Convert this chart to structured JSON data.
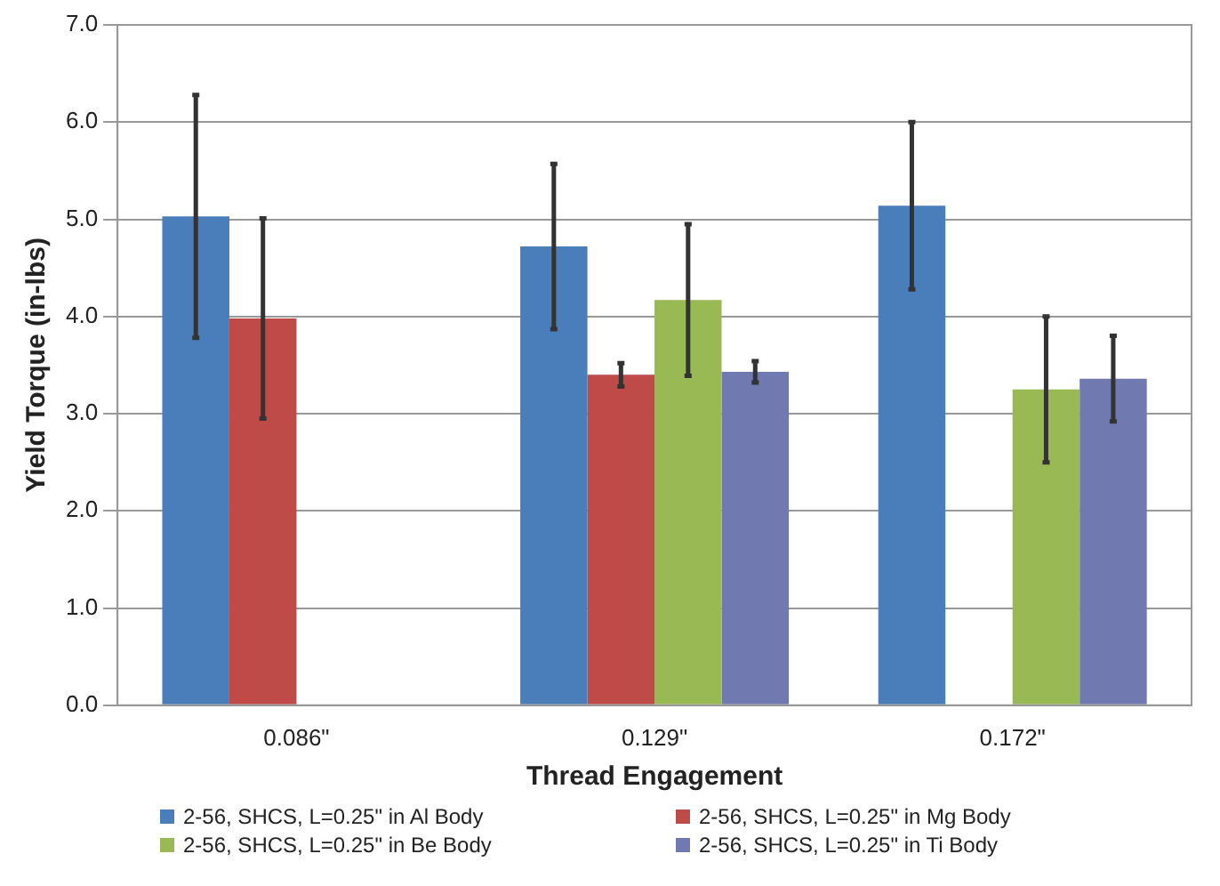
{
  "chart_data": {
    "type": "bar",
    "xlabel": "Thread Engagement",
    "ylabel": "Yield Torque (in-lbs)",
    "categories": [
      "0.086\"",
      "0.129\"",
      "0.172\""
    ],
    "series": [
      {
        "name": "2-56, SHCS, L=0.25\" in Al Body",
        "color": "#4a7ebb",
        "values": [
          5.03,
          4.72,
          5.14
        ],
        "errors": [
          1.25,
          0.85,
          0.86
        ]
      },
      {
        "name": "2-56, SHCS, L=0.25\" in Mg Body",
        "color": "#be4b48",
        "values": [
          3.98,
          3.4,
          null
        ],
        "errors": [
          1.03,
          0.12,
          null
        ]
      },
      {
        "name": "2-56, SHCS, L=0.25\" in Be Body",
        "color": "#98b954",
        "values": [
          null,
          4.17,
          3.25
        ],
        "errors": [
          null,
          0.78,
          0.75
        ]
      },
      {
        "name": "2-56, SHCS, L=0.25\" in Ti Body",
        "color": "#7079b0",
        "values": [
          null,
          3.43,
          3.36
        ],
        "errors": [
          null,
          0.11,
          0.44
        ]
      }
    ],
    "ylim": [
      0,
      7
    ],
    "yticks": [
      {
        "value": 0,
        "label": "0.0"
      },
      {
        "value": 1,
        "label": "1.0"
      },
      {
        "value": 2,
        "label": "2.0"
      },
      {
        "value": 3,
        "label": "3.0"
      },
      {
        "value": 4,
        "label": "4.0"
      },
      {
        "value": 5,
        "label": "5.0"
      },
      {
        "value": 6,
        "label": "6.0"
      },
      {
        "value": 7,
        "label": "7.0"
      }
    ],
    "grid": "y",
    "legend": "bottom"
  }
}
